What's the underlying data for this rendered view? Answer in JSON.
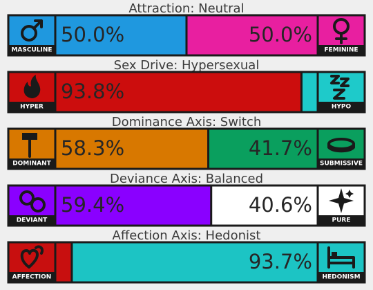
{
  "axes": [
    {
      "title": "Attraction: Neutral",
      "left": {
        "label": "MASCULINE",
        "value": 50.0,
        "value_label": "50.0%",
        "color": "#1f98df"
      },
      "right": {
        "label": "FEMININE",
        "value": 50.0,
        "value_label": "50.0%",
        "color": "#e81fa0"
      }
    },
    {
      "title": "Sex Drive: Hypersexual",
      "left": {
        "label": "HYPER",
        "value": 93.8,
        "value_label": "93.8%",
        "color": "#cc0d0d"
      },
      "right": {
        "label": "HYPO",
        "value": 6.2,
        "color": "#1ecaca"
      }
    },
    {
      "title": "Dominance Axis: Switch",
      "left": {
        "label": "DOMINANT",
        "value": 58.3,
        "value_label": "58.3%",
        "color": "#d87800"
      },
      "right": {
        "label": "SUBMISSIVE",
        "value": 41.7,
        "value_label": "41.7%",
        "color": "#0a9f5e"
      }
    },
    {
      "title": "Deviance Axis: Balanced",
      "left": {
        "label": "DEVIANT",
        "value": 59.4,
        "value_label": "59.4%",
        "color": "#8a00ff"
      },
      "right": {
        "label": "PURE",
        "value": 40.6,
        "value_label": "40.6%",
        "color": "#ffffff"
      }
    },
    {
      "title": "Affection Axis: Hedonist",
      "left": {
        "label": "AFFECTION",
        "value": 6.3,
        "color": "#c80f0f"
      },
      "right": {
        "label": "HEDONISM",
        "value": 93.7,
        "value_label": "93.7%",
        "color": "#1cc4c4"
      }
    }
  ]
}
